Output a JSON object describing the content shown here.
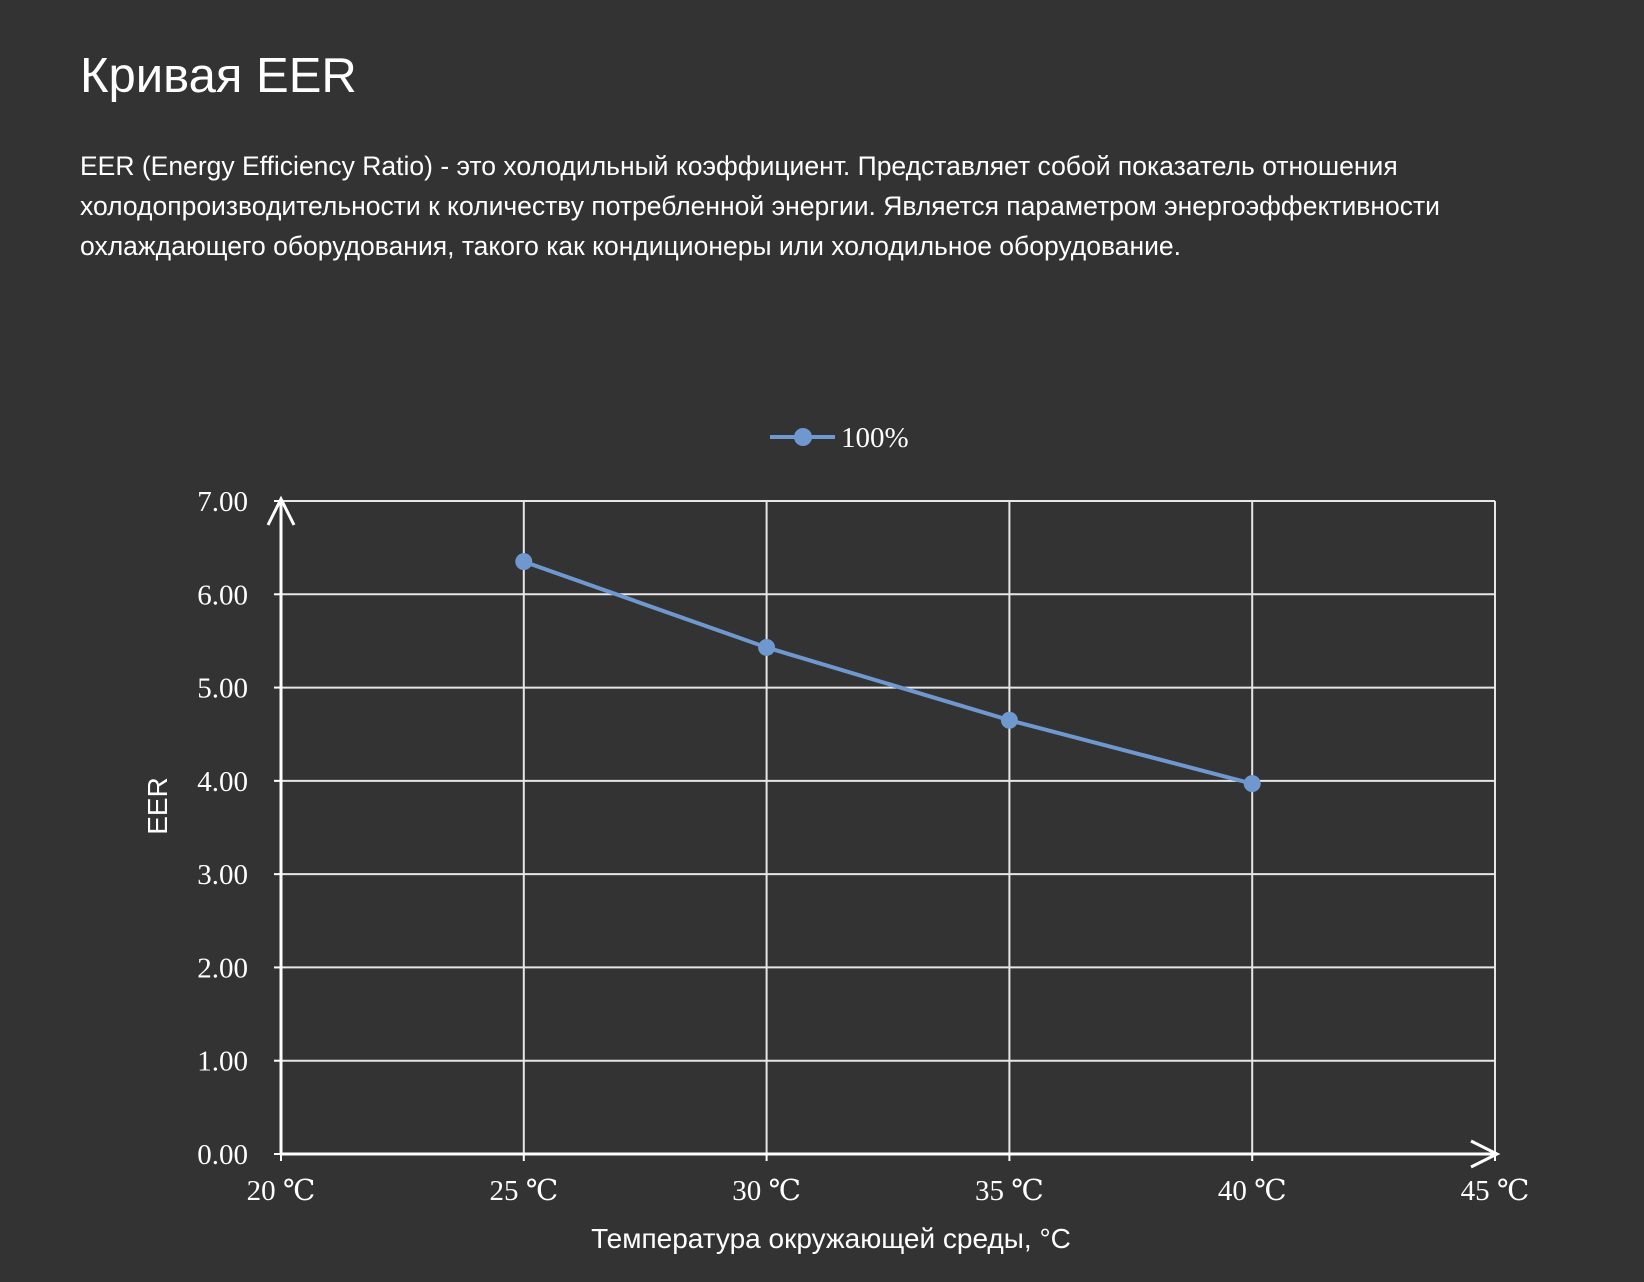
{
  "page": {
    "title": "Кривая EER",
    "description": "EER (Energy Efficiency Ratio) - это холодильный коэффициент. Представляет собой показатель отношения холодопроизводительности к количеству потребленной энергии. Является параметром энергоэффективности охлаждающего оборудования, такого как кондиционеры или холодильное оборудование."
  },
  "colors": {
    "background": "#333334",
    "text": "#ffffff",
    "grid": "#e6e6e6",
    "series": "#6f98cf"
  },
  "chart_data": {
    "type": "line",
    "title": "",
    "xlabel": "Температура окружающей среды, °C",
    "ylabel": "EER",
    "x_tick_labels": [
      "20 ℃",
      "25 ℃",
      "30 ℃",
      "35 ℃",
      "40 ℃",
      "45 ℃"
    ],
    "y_tick_labels": [
      "0.00",
      "1.00",
      "2.00",
      "3.00",
      "4.00",
      "5.00",
      "6.00",
      "7.00"
    ],
    "xlim": [
      20,
      45
    ],
    "ylim": [
      0,
      7
    ],
    "x_ticks": [
      20,
      25,
      30,
      35,
      40,
      45
    ],
    "y_ticks": [
      0,
      1,
      2,
      3,
      4,
      5,
      6,
      7
    ],
    "grid": true,
    "legend_position": "top-center",
    "series": [
      {
        "name": "100%",
        "x": [
          25,
          30,
          35,
          40
        ],
        "y": [
          6.35,
          5.43,
          4.65,
          3.97
        ],
        "color": "#6f98cf",
        "marker": "circle"
      }
    ]
  }
}
